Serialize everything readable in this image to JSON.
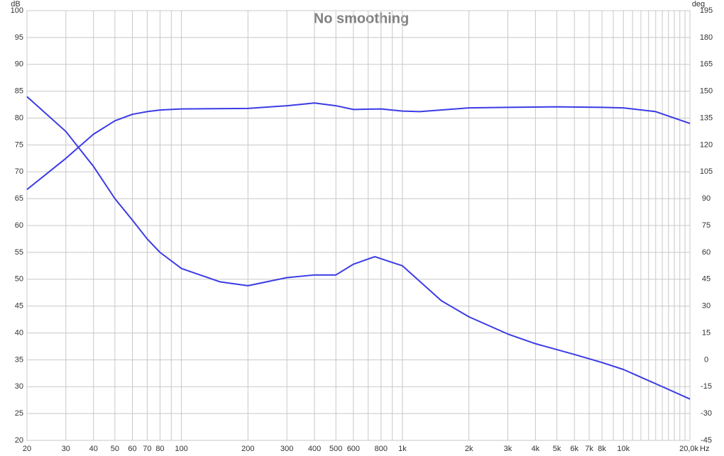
{
  "chart_data": {
    "type": "line",
    "title": "No smoothing",
    "y_label": "dB",
    "y2_label": "deg",
    "x_label": "Hz",
    "log_x": true,
    "grid": true,
    "xlim": [
      20,
      20000
    ],
    "xticks": [
      20,
      30,
      40,
      50,
      60,
      70,
      80,
      100,
      200,
      300,
      400,
      500,
      600,
      800,
      {
        "value": 1000,
        "label": "1k"
      },
      {
        "value": 2000,
        "label": "2k"
      },
      {
        "value": 3000,
        "label": "3k"
      },
      {
        "value": 4000,
        "label": "4k"
      },
      {
        "value": 5000,
        "label": "5k"
      },
      {
        "value": 6000,
        "label": "6k"
      },
      {
        "value": 7000,
        "label": "7k"
      },
      {
        "value": 8000,
        "label": "8k"
      },
      {
        "value": 10000,
        "label": "10k"
      },
      {
        "value": 20000,
        "label": "20,0k"
      }
    ],
    "minor_xticks": [
      90,
      700,
      900,
      9000,
      11000,
      12000,
      13000,
      14000,
      15000,
      16000,
      17000,
      18000,
      19000
    ],
    "ylim": [
      20,
      100
    ],
    "yticks": [
      20,
      25,
      30,
      35,
      40,
      45,
      50,
      55,
      60,
      65,
      70,
      75,
      80,
      85,
      90,
      95,
      100
    ],
    "y2lim": [
      -45,
      195
    ],
    "y2ticks": [
      -45,
      -30,
      -15,
      0,
      15,
      30,
      45,
      60,
      75,
      90,
      105,
      120,
      135,
      150,
      165,
      180,
      195
    ],
    "series": [
      {
        "color": "#3b3be6",
        "x": [
          20,
          30,
          40,
          50,
          60,
          70,
          80,
          100,
          200,
          300,
          400,
          500,
          600,
          800,
          1000,
          1200,
          2000,
          3000,
          5000,
          8000,
          10000,
          14000,
          20000
        ],
        "values": [
          66.7,
          72.5,
          77,
          79.5,
          80.7,
          81.2,
          81.5,
          81.7,
          81.8,
          82.3,
          82.8,
          82.3,
          81.6,
          81.7,
          81.3,
          81.2,
          81.9,
          82,
          82.1,
          82,
          81.9,
          81.2,
          79
        ]
      },
      {
        "color": "#3b3be6",
        "axis": "y2",
        "x": [
          20,
          30,
          40,
          50,
          60,
          70,
          80,
          100,
          150,
          200,
          300,
          400,
          500,
          600,
          750,
          1000,
          1500,
          2000,
          3000,
          4000,
          6000,
          8000,
          10000,
          15000,
          20000
        ],
        "values": [
          147,
          127.5,
          108,
          90,
          78,
          67.5,
          60,
          51,
          43.5,
          41.4,
          45.9,
          47.4,
          47.4,
          53.4,
          57.6,
          52.5,
          33,
          24,
          14.4,
          9,
          3,
          -1.5,
          -5.4,
          -15,
          -21.9
        ]
      }
    ]
  }
}
